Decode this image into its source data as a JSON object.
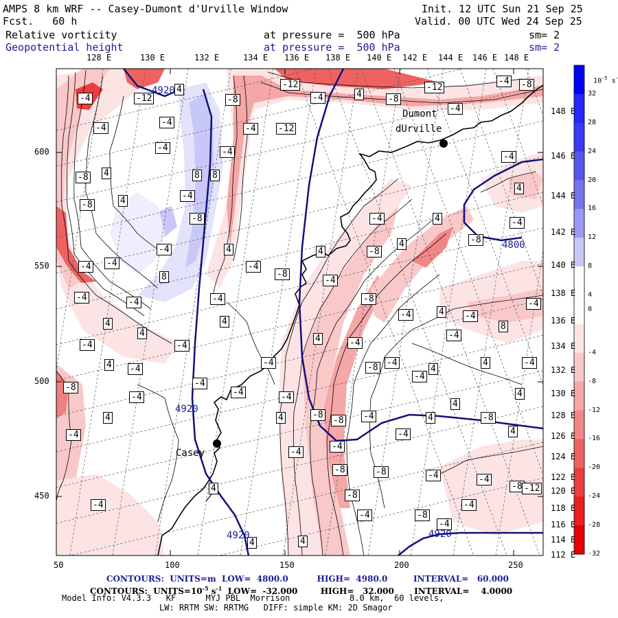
{
  "header": {
    "title_left": "AMPS 8 km WRF -- Casey-Dumont d'Urville Window",
    "fcst": "Fcst.   60 h",
    "init": "Init. 12 UTC Sun 21 Sep 25",
    "valid": "Valid. 00 UTC Wed 24 Sep 25",
    "field1_name": "Relative vorticity",
    "field1_level": "at pressure =  500 hPa",
    "field1_sm": "sm= 2",
    "field2_name": "Geopotential height",
    "field2_level": "at pressure =  500 hPa",
    "field2_sm": "sm= 2"
  },
  "map": {
    "top_lon_labels": [
      "128 E",
      "130 E",
      "132 E",
      "134 E",
      "136 E",
      "138 E",
      "140 E",
      "142 E",
      "144 E",
      "146 E",
      "148 E"
    ],
    "right_lon_labels": [
      "148 E",
      "146 E",
      "144 E",
      "142 E",
      "140 E",
      "138 E",
      "136 E",
      "134 E",
      "132 E",
      "130 E",
      "128 E",
      "126 E",
      "124 E",
      "122 E",
      "120 E",
      "118 E",
      "116 E",
      "114 E",
      "112 E"
    ],
    "left_y_labels": [
      "600",
      "550",
      "500",
      "450"
    ],
    "bottom_x_labels": [
      "50",
      "100",
      "150",
      "200",
      "250"
    ],
    "stations": [
      {
        "name_lines": [
          "Dumont",
          "dUrville"
        ]
      },
      {
        "name_lines": [
          "Casey"
        ]
      }
    ],
    "height_labels": [
      "4920",
      "4920",
      "4920",
      "4800",
      "4920"
    ],
    "vort_labels": [
      "-4",
      "-12",
      "4",
      "-4",
      "-12",
      "4",
      "-8",
      "-12",
      "-4",
      "-8",
      "-4",
      "-4",
      "-8",
      "-4",
      "-12",
      "-4",
      "-4",
      "4",
      "-4",
      "-8",
      "8",
      "8",
      "-4",
      "-4",
      "-8",
      "4",
      "4",
      "-8",
      "-4",
      "-8",
      "-4",
      "-4",
      "-4",
      "8",
      "4",
      "-4",
      "-8",
      "4",
      "-4",
      "-8",
      "4",
      "4",
      "-4",
      "-4",
      "-4",
      "-8",
      "4",
      "-4",
      "8",
      "-4",
      "4",
      "4",
      "-4",
      "-4",
      "4",
      "-4",
      "4",
      "-4",
      "-8",
      "4",
      "-8",
      "-4",
      "-4",
      "-4",
      "-8",
      "-8",
      "-4",
      "-4",
      "4",
      "4",
      "-4",
      "-4",
      "-8",
      "-8",
      "-4",
      "-4",
      "-8",
      "-8",
      "-4",
      "4",
      "-4",
      "-8",
      "-4",
      "4",
      "-4",
      "4",
      "-12",
      "-4",
      "-8",
      "4",
      "4",
      "4",
      "-4",
      "-4",
      "-4",
      "-4",
      "4",
      "-4",
      "4",
      "-4",
      "-4",
      "4",
      "-4"
    ]
  },
  "colorbar": {
    "unit": "10",
    "unit_exp": "-5",
    "unit_suffix": "s",
    "unit_suffix_exp": "-1",
    "labels": [
      "32",
      "28",
      "24",
      "20",
      "16",
      "12",
      "8",
      "4",
      "0",
      "-4",
      "-8",
      "-12",
      "-16",
      "-20",
      "-24",
      "-28",
      "-32"
    ],
    "colors": [
      "#0000ff",
      "#2626ff",
      "#3a3af5",
      "#5757f0",
      "#7474ee",
      "#9a9af2",
      "#c8c8f8",
      "#ffffff",
      "#ffffff",
      "#fde4e4",
      "#f9c8c8",
      "#f5a6a6",
      "#f28686",
      "#ee6262",
      "#ec3e3e",
      "#ea1e1e",
      "#e60000"
    ]
  },
  "footer": {
    "line1_label": "CONTOURS:  UNITS=m  LOW=  4800.0          HIGH=  4980.0         INTERVAL=   60.000",
    "line2_label": "CONTOURS:  UNITS=10",
    "line2_exp": "-5",
    "line2_mid": " s",
    "line2_exp2": "-1",
    "line2_rest": "  LOW=  -32.000        HIGH=   32.000       INTERVAL=    4.0000",
    "line3": "Model Info: V4.3.3   KF      MYJ PBL  Morrison            8.0 km,  60 levels,",
    "line4": "LW: RRTM SW: RRTMG   DIFF: simple KM: 2D Smagor"
  },
  "style": {
    "height_contour_color": "#10107a",
    "coast_color": "#000000",
    "vort_line_color": "#000000",
    "text_blue": "#1a1a9a"
  }
}
